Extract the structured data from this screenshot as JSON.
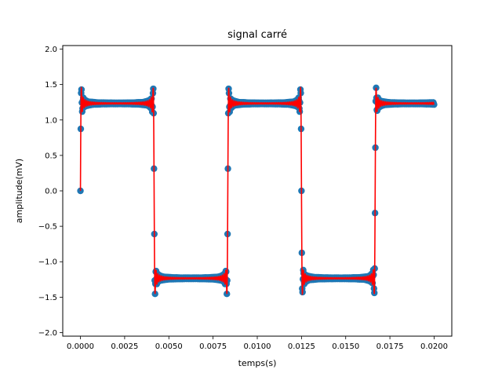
{
  "chart_data": {
    "type": "line",
    "title": "signal carré",
    "xlabel": "temps(s)",
    "ylabel": "amplitude(mV)",
    "xlim": [
      -0.001,
      0.021
    ],
    "ylim": [
      -2.05,
      2.05
    ],
    "x_ticks": [
      0.0,
      0.0025,
      0.005,
      0.0075,
      0.01,
      0.0125,
      0.015,
      0.0175,
      0.02
    ],
    "x_tick_labels": [
      "0.0000",
      "0.0025",
      "0.0050",
      "0.0075",
      "0.0100",
      "0.0125",
      "0.0150",
      "0.0175",
      "0.0200"
    ],
    "y_ticks": [
      -2.0,
      -1.5,
      -1.0,
      -0.5,
      0.0,
      0.5,
      1.0,
      1.5,
      2.0
    ],
    "y_tick_labels": [
      "−2.0",
      "−1.5",
      "−1.0",
      "−0.5",
      "0.0",
      "0.5",
      "1.0",
      "1.5",
      "2.0"
    ],
    "grid": false,
    "signal": {
      "kind": "square wave (Fourier partial sum)",
      "amplitude": 1.5708,
      "frequency_hz": 120,
      "duration_s": 0.02,
      "start_value": 0.0,
      "plateau_high": 1.57,
      "plateau_low": -1.57,
      "overshoot_peak": 1.85,
      "transitions_s": [
        0.0,
        0.004167,
        0.008333,
        0.0125,
        0.016667
      ]
    },
    "series": [
      {
        "style": "markers",
        "color": "#1f77b4"
      },
      {
        "style": "line",
        "color": "#ff0000"
      }
    ]
  }
}
